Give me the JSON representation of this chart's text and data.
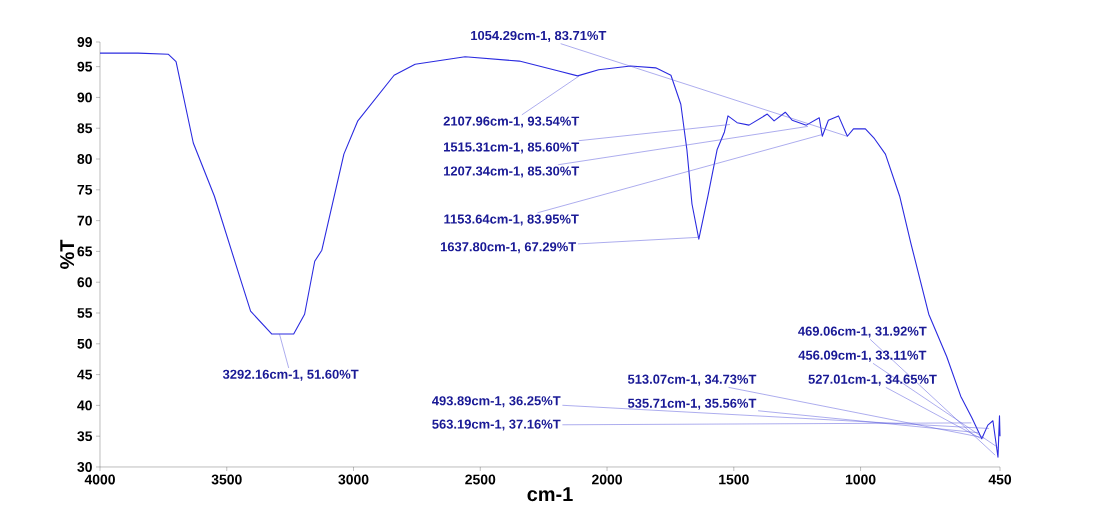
{
  "chart_data": {
    "type": "line",
    "xlabel": "cm-1",
    "ylabel": "%T",
    "xlim": [
      4000,
      450
    ],
    "ylim": [
      30,
      99
    ],
    "xticks": [
      4000,
      3500,
      3000,
      2500,
      2000,
      1500,
      1000,
      450
    ],
    "yticks": [
      30,
      35,
      40,
      45,
      50,
      55,
      60,
      65,
      70,
      75,
      80,
      85,
      90,
      95,
      99
    ],
    "x": [
      4000,
      3850,
      3730,
      3700,
      3632,
      3549,
      3446,
      3406,
      3323,
      3236,
      3193,
      3153,
      3125,
      3038,
      2983,
      2840,
      2757,
      2560,
      2346,
      2191,
      2116,
      2033,
      1907,
      1808,
      1748,
      1709,
      1685,
      1665,
      1638,
      1602,
      1566,
      1537,
      1523,
      1487,
      1440,
      1368,
      1341,
      1297,
      1270,
      1214,
      1163,
      1151,
      1127,
      1087,
      1052,
      1028,
      981,
      945,
      902,
      846,
      802,
      791,
      731,
      660,
      605,
      561,
      522,
      498,
      478,
      462,
      458,
      452,
      450
    ],
    "series": [
      {
        "color": "#2b2be0",
        "values": [
          97.2,
          97.2,
          97.0,
          95.8,
          82.6,
          74.0,
          60.5,
          55.3,
          51.6,
          51.6,
          54.8,
          63.4,
          65.2,
          80.8,
          86.2,
          93.6,
          95.4,
          96.6,
          95.9,
          94.3,
          93.5,
          94.5,
          95.1,
          94.8,
          93.6,
          88.9,
          81.5,
          72.7,
          67.0,
          74.0,
          81.5,
          84.4,
          87.0,
          85.9,
          85.5,
          87.3,
          86.2,
          87.6,
          86.3,
          85.5,
          86.7,
          83.7,
          86.3,
          87.0,
          83.7,
          84.9,
          84.9,
          83.3,
          80.8,
          74.0,
          66.4,
          64.6,
          54.8,
          47.9,
          41.5,
          38.0,
          34.6,
          36.8,
          37.5,
          32.8,
          31.6,
          38.3,
          35.0
        ]
      }
    ],
    "annotations": [
      {
        "text": "1054.29cm-1, 83.71%T",
        "x": 1054.29,
        "y": 83.71
      },
      {
        "text": "2107.96cm-1, 93.54%T",
        "x": 2107.96,
        "y": 93.54
      },
      {
        "text": "1515.31cm-1, 85.60%T",
        "x": 1515.31,
        "y": 85.6
      },
      {
        "text": "1207.34cm-1, 85.30%T",
        "x": 1207.34,
        "y": 85.3
      },
      {
        "text": "1153.64cm-1, 83.95%T",
        "x": 1153.64,
        "y": 83.95
      },
      {
        "text": "1637.80cm-1, 67.29%T",
        "x": 1637.8,
        "y": 67.29
      },
      {
        "text": "3292.16cm-1, 51.60%T",
        "x": 3292.16,
        "y": 51.6
      },
      {
        "text": "493.89cm-1, 36.25%T",
        "x": 493.89,
        "y": 36.25
      },
      {
        "text": "563.19cm-1, 37.16%T",
        "x": 563.19,
        "y": 37.16
      },
      {
        "text": "469.06cm-1, 31.92%T",
        "x": 469.06,
        "y": 31.92
      },
      {
        "text": "456.09cm-1, 33.11%T",
        "x": 456.09,
        "y": 33.11
      },
      {
        "text": "513.07cm-1, 34.73%T",
        "x": 513.07,
        "y": 34.73
      },
      {
        "text": "527.01cm-1, 34.65%T",
        "x": 527.01,
        "y": 34.65
      },
      {
        "text": "535.71cm-1, 35.56%T",
        "x": 535.71,
        "y": 35.56
      }
    ]
  }
}
